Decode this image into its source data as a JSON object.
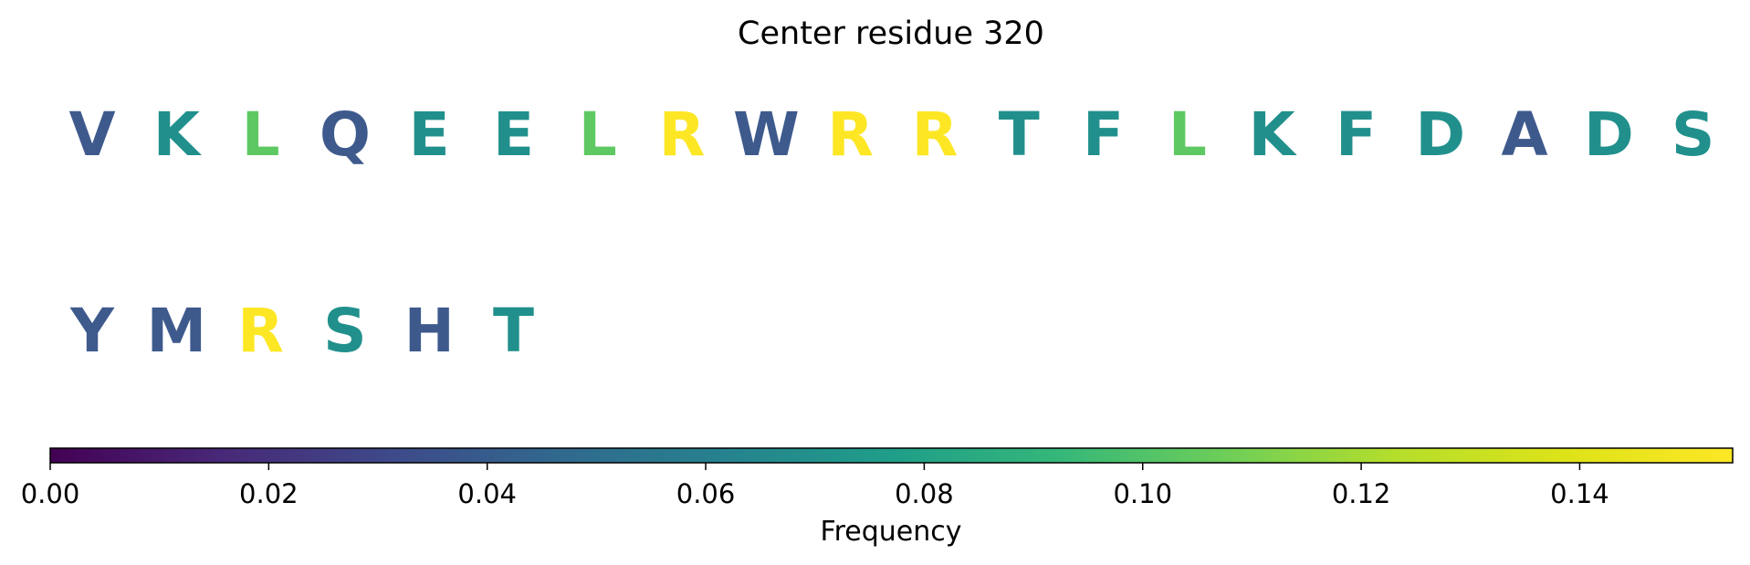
{
  "chart_data": {
    "type": "sequence-logo",
    "title": "Center residue 320",
    "rows": [
      {
        "residues": [
          "V",
          "K",
          "L",
          "Q",
          "E",
          "E",
          "L",
          "R",
          "W",
          "R",
          "R",
          "T",
          "F",
          "L",
          "K",
          "F",
          "D",
          "A",
          "D",
          "S"
        ],
        "colors": [
          "#3e5a8d",
          "#21908c",
          "#5ec962",
          "#3e5a8d",
          "#21908c",
          "#21908c",
          "#5ec962",
          "#fde725",
          "#3e5a8d",
          "#fde725",
          "#fde725",
          "#21908c",
          "#21908c",
          "#5ec962",
          "#21908c",
          "#21908c",
          "#21908c",
          "#3e5a8d",
          "#21908c",
          "#21908c"
        ]
      },
      {
        "residues": [
          "Y",
          "M",
          "R",
          "S",
          "H",
          "T"
        ],
        "colors": [
          "#3e5a8d",
          "#3e5a8d",
          "#fde725",
          "#21908c",
          "#3e5a8d",
          "#21908c"
        ]
      }
    ],
    "colorbar": {
      "label": "Frequency",
      "colormap": "viridis",
      "range": [
        0.0,
        0.154
      ],
      "ticks": [
        0.0,
        0.02,
        0.04,
        0.06,
        0.08,
        0.1,
        0.12,
        0.14
      ],
      "tick_labels": [
        "0.00",
        "0.02",
        "0.04",
        "0.06",
        "0.08",
        "0.10",
        "0.12",
        "0.14"
      ]
    }
  }
}
